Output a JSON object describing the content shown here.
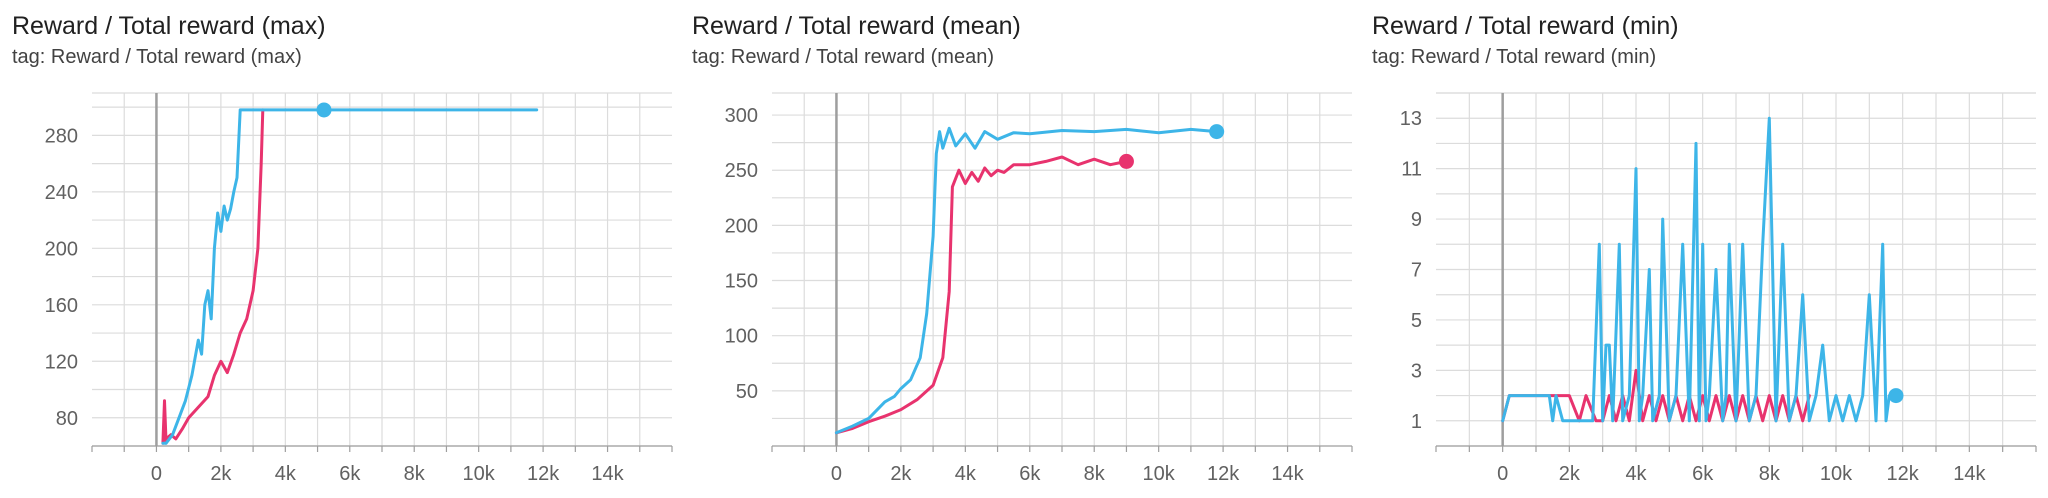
{
  "colors": {
    "series_blue": "#3db5e8",
    "series_pink": "#e8336e",
    "grid": "#dcdcdc",
    "axis": "#9e9e9e"
  },
  "chart_data": [
    {
      "type": "line",
      "title": "Reward / Total reward (max)",
      "tag": "tag: Reward / Total reward (max)",
      "xlim": [
        -2000,
        16000
      ],
      "ylim": [
        60,
        310
      ],
      "xticks": [
        0,
        2000,
        4000,
        6000,
        8000,
        10000,
        12000,
        14000
      ],
      "xtick_labels": [
        "0",
        "2k",
        "4k",
        "6k",
        "8k",
        "10k",
        "12k",
        "14k"
      ],
      "yticks": [
        80,
        120,
        160,
        200,
        240,
        280
      ],
      "ytick_labels": [
        "80",
        "120",
        "160",
        "200",
        "240",
        "280"
      ],
      "grid": true,
      "series": [
        {
          "color": "#e8336e",
          "x": [
            200,
            250,
            300,
            350,
            450,
            600,
            800,
            1000,
            1200,
            1400,
            1600,
            1800,
            2000,
            2200,
            2400,
            2600,
            2800,
            3000,
            3150,
            3250,
            3300
          ],
          "y": [
            62,
            92,
            62,
            66,
            68,
            65,
            72,
            80,
            85,
            90,
            95,
            110,
            120,
            112,
            125,
            140,
            150,
            170,
            200,
            260,
            298
          ]
        },
        {
          "color": "#3db5e8",
          "x": [
            200,
            300,
            500,
            700,
            900,
            1100,
            1300,
            1400,
            1500,
            1600,
            1700,
            1800,
            1900,
            2000,
            2100,
            2200,
            2300,
            2400,
            2500,
            2600,
            2700,
            3000,
            3500,
            4000,
            5000,
            6000,
            8000,
            10000,
            11800
          ],
          "y": [
            62,
            62,
            68,
            80,
            92,
            110,
            135,
            125,
            160,
            170,
            150,
            200,
            225,
            212,
            230,
            220,
            228,
            240,
            250,
            298,
            298,
            298,
            298,
            298,
            298,
            298,
            298,
            298,
            298
          ],
          "marker": [
            5200,
            298
          ]
        }
      ]
    },
    {
      "type": "line",
      "title": "Reward / Total reward (mean)",
      "tag": "tag: Reward / Total reward (mean)",
      "xlim": [
        -2000,
        16000
      ],
      "ylim": [
        0,
        320
      ],
      "xticks": [
        0,
        2000,
        4000,
        6000,
        8000,
        10000,
        12000,
        14000
      ],
      "xtick_labels": [
        "0",
        "2k",
        "4k",
        "6k",
        "8k",
        "10k",
        "12k",
        "14k"
      ],
      "yticks": [
        50,
        100,
        150,
        200,
        250,
        300
      ],
      "ytick_labels": [
        "50",
        "100",
        "150",
        "200",
        "250",
        "300"
      ],
      "grid": true,
      "series": [
        {
          "color": "#e8336e",
          "x": [
            0,
            500,
            1000,
            1500,
            2000,
            2500,
            3000,
            3300,
            3500,
            3600,
            3800,
            4000,
            4200,
            4400,
            4600,
            4800,
            5000,
            5200,
            5500,
            6000,
            6500,
            7000,
            7500,
            8000,
            8500,
            9000
          ],
          "y": [
            12,
            16,
            22,
            27,
            33,
            42,
            55,
            80,
            140,
            235,
            250,
            238,
            248,
            240,
            252,
            245,
            250,
            248,
            255,
            255,
            258,
            262,
            255,
            260,
            255,
            258
          ],
          "marker": [
            9000,
            258
          ]
        },
        {
          "color": "#3db5e8",
          "x": [
            0,
            500,
            1000,
            1500,
            1800,
            2000,
            2300,
            2600,
            2800,
            3000,
            3100,
            3200,
            3300,
            3500,
            3700,
            4000,
            4300,
            4600,
            5000,
            5500,
            6000,
            7000,
            8000,
            9000,
            10000,
            11000,
            11800
          ],
          "y": [
            12,
            18,
            25,
            40,
            45,
            52,
            60,
            80,
            120,
            190,
            265,
            285,
            270,
            288,
            272,
            283,
            270,
            285,
            278,
            284,
            283,
            286,
            285,
            287,
            284,
            287,
            285
          ],
          "marker": [
            11800,
            285
          ]
        }
      ]
    },
    {
      "type": "line",
      "title": "Reward / Total reward (min)",
      "tag": "tag: Reward / Total reward (min)",
      "xlim": [
        -2000,
        16000
      ],
      "ylim": [
        0,
        14
      ],
      "xticks": [
        0,
        2000,
        4000,
        6000,
        8000,
        10000,
        12000,
        14000
      ],
      "xtick_labels": [
        "0",
        "2k",
        "4k",
        "6k",
        "8k",
        "10k",
        "12k",
        "14k"
      ],
      "yticks": [
        1,
        3,
        5,
        7,
        9,
        11,
        13
      ],
      "ytick_labels": [
        "1",
        "3",
        "5",
        "7",
        "9",
        "11",
        "13"
      ],
      "grid": true,
      "series": [
        {
          "color": "#e8336e",
          "x": [
            0,
            200,
            400,
            1000,
            2000,
            2300,
            2500,
            2800,
            3000,
            3200,
            3400,
            3600,
            3800,
            4000,
            4200,
            4400,
            4600,
            4800,
            5000,
            5200,
            5400,
            5600,
            5800,
            6000,
            6200,
            6400,
            6600,
            6800,
            7000,
            7200,
            7400,
            7600,
            7800,
            8000,
            8200,
            8400,
            8600,
            8800,
            9000,
            9200
          ],
          "y": [
            1,
            2,
            2,
            2,
            2,
            1,
            2,
            1,
            1,
            2,
            1,
            2,
            1,
            3,
            1,
            2,
            1,
            2,
            1,
            2,
            1,
            2,
            1,
            2,
            1,
            2,
            1,
            2,
            1,
            2,
            1,
            2,
            1,
            2,
            1,
            2,
            1,
            2,
            1,
            2
          ]
        },
        {
          "color": "#3db5e8",
          "x": [
            0,
            200,
            400,
            1000,
            1400,
            1500,
            1600,
            1800,
            2000,
            2500,
            2700,
            2900,
            3000,
            3100,
            3200,
            3300,
            3500,
            3600,
            3800,
            4000,
            4100,
            4200,
            4400,
            4500,
            4700,
            4800,
            5000,
            5200,
            5400,
            5600,
            5800,
            5900,
            6000,
            6100,
            6200,
            6400,
            6600,
            6700,
            6800,
            7000,
            7200,
            7400,
            7600,
            7800,
            8000,
            8200,
            8400,
            8600,
            8800,
            9000,
            9200,
            9400,
            9600,
            9800,
            10000,
            10200,
            10400,
            10600,
            10800,
            11000,
            11200,
            11400,
            11500,
            11600,
            11800
          ],
          "y": [
            1,
            2,
            2,
            2,
            2,
            1,
            2,
            1,
            1,
            1,
            1,
            8,
            1,
            4,
            4,
            1,
            8,
            1,
            2,
            11,
            1,
            2,
            7,
            1,
            2,
            9,
            1,
            2,
            8,
            1,
            12,
            1,
            8,
            1,
            2,
            7,
            1,
            2,
            8,
            1,
            8,
            1,
            2,
            8,
            13,
            1,
            8,
            1,
            2,
            6,
            1,
            2,
            4,
            1,
            2,
            1,
            2,
            1,
            2,
            6,
            1,
            8,
            1,
            2,
            2
          ],
          "marker": [
            11800,
            2
          ]
        }
      ]
    }
  ]
}
